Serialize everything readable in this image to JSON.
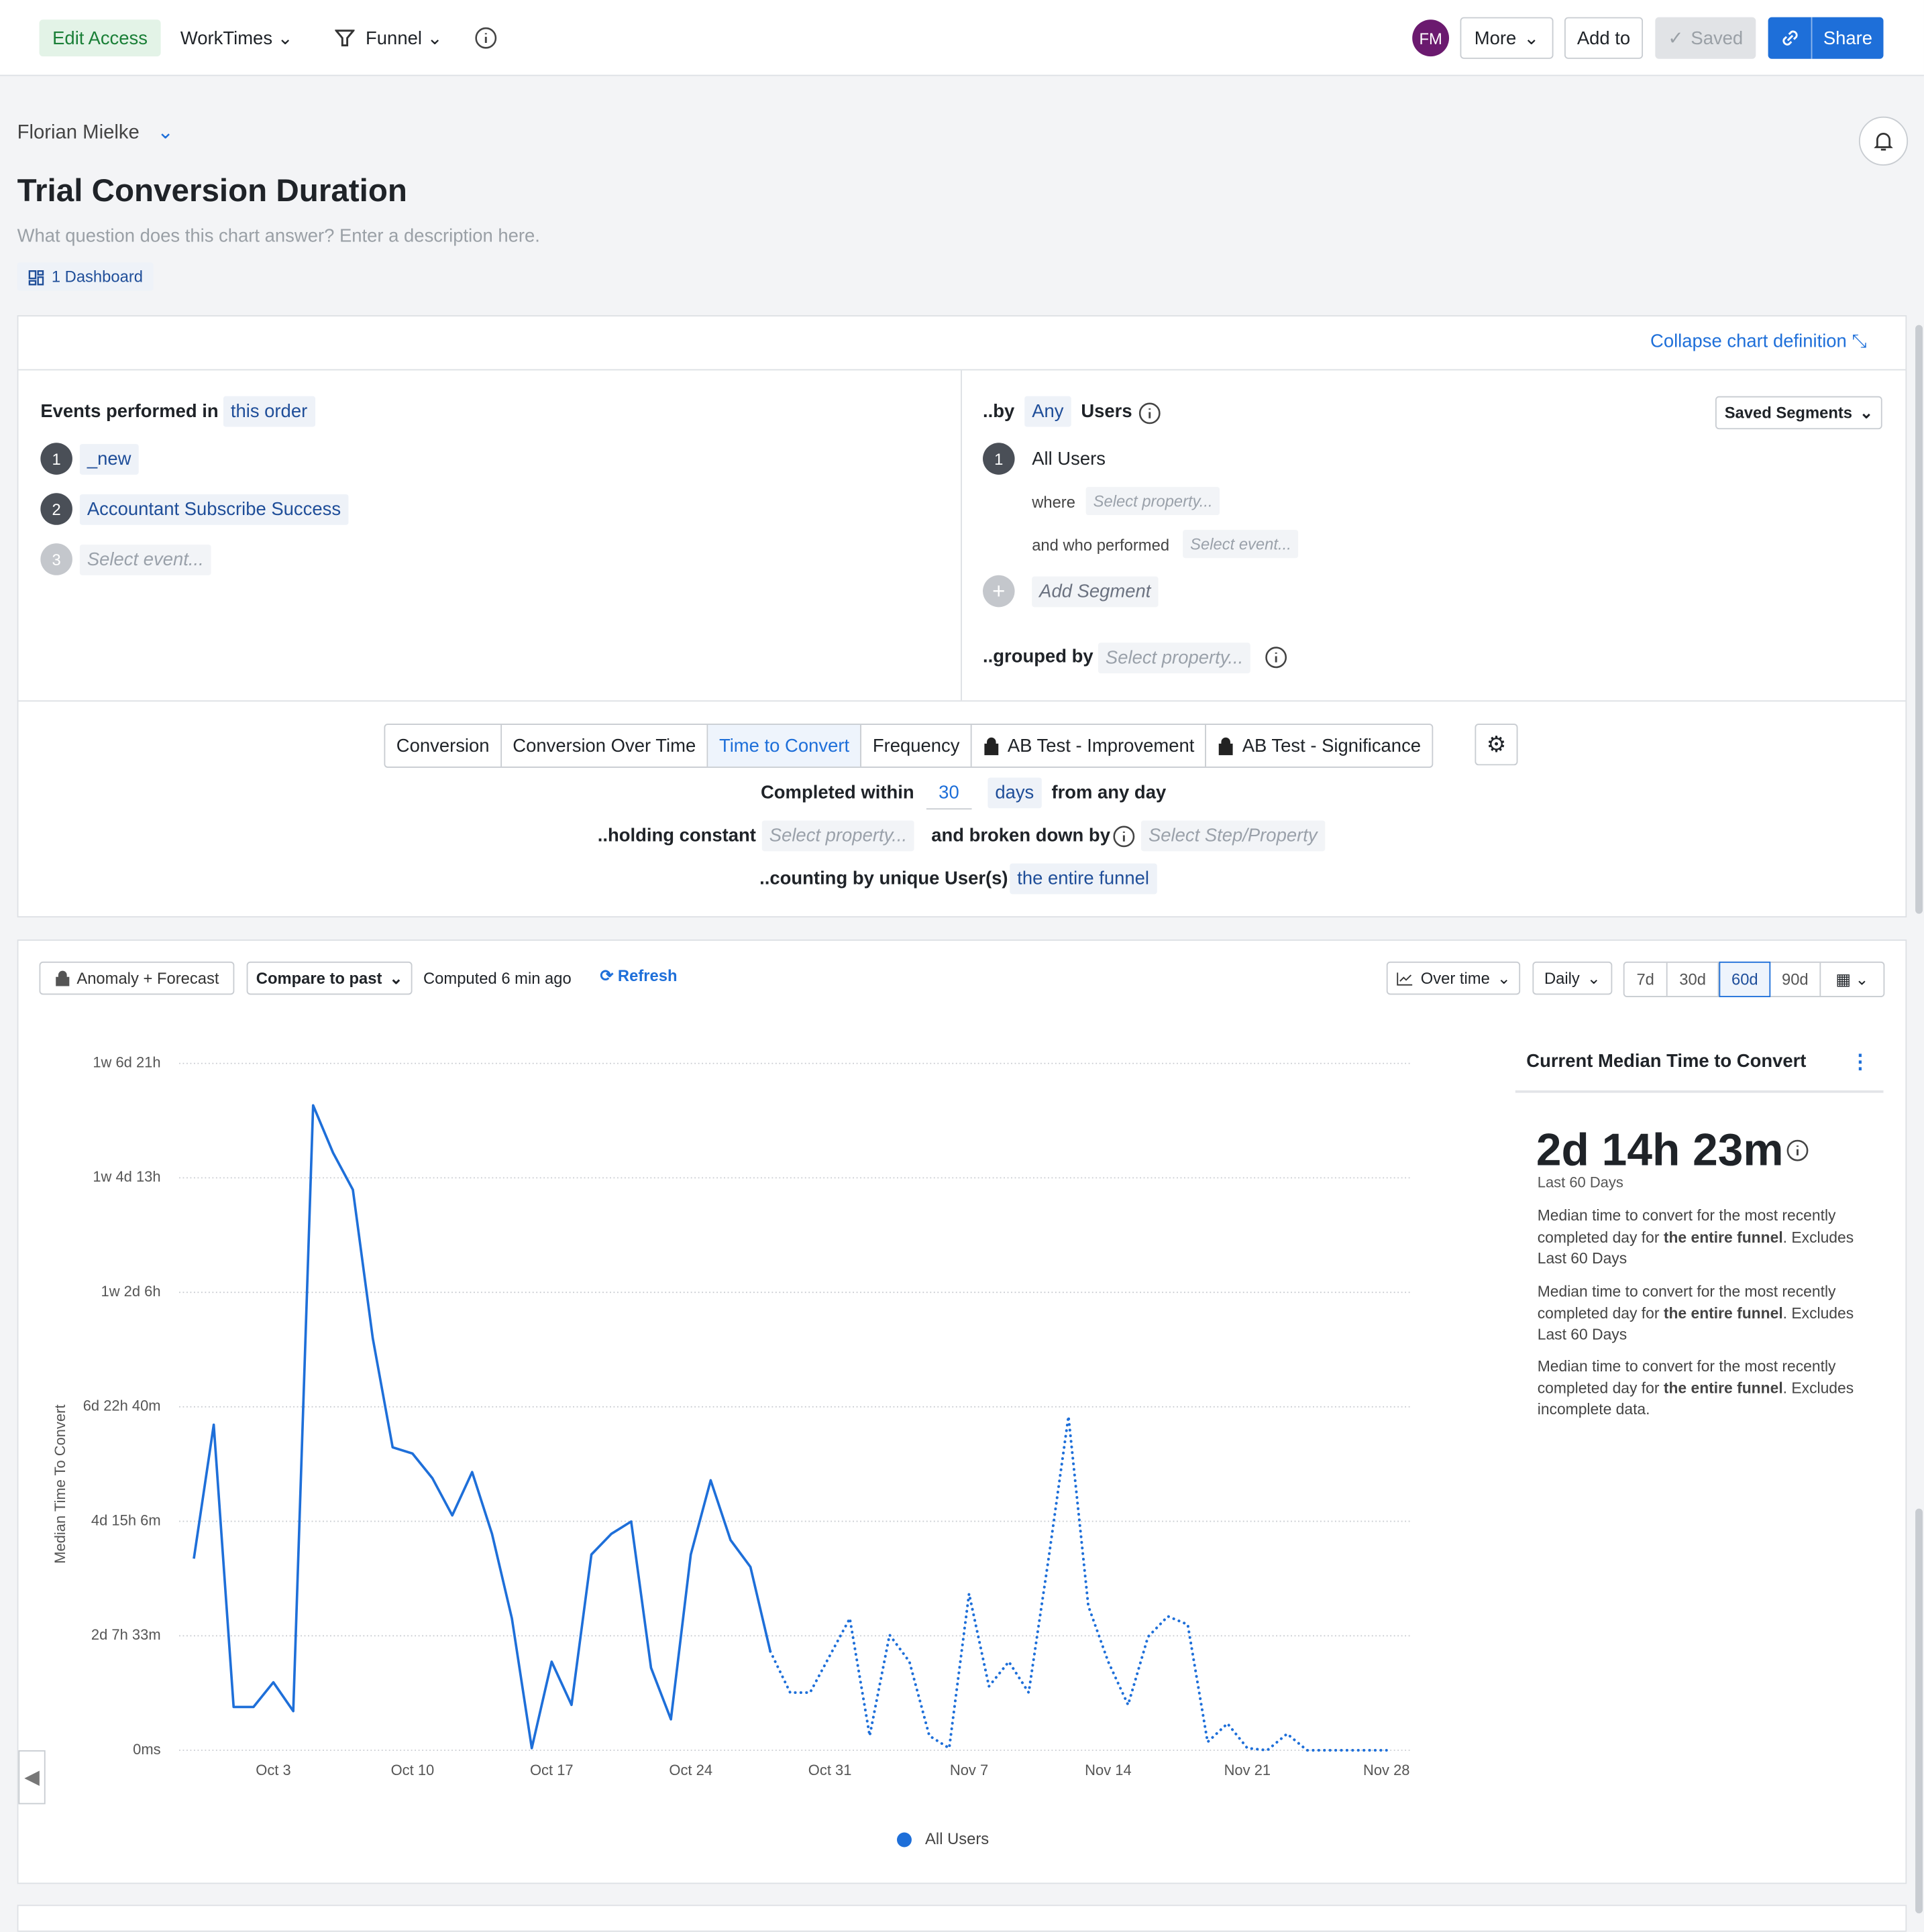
{
  "header": {
    "edit_access": "Edit Access",
    "workspace": "WorkTimes",
    "chart_kind": "Funnel",
    "avatar": "FM",
    "more": "More",
    "add_to": "Add to",
    "saved": "Saved",
    "share": "Share"
  },
  "owner": "Florian Mielke",
  "title": "Trial Conversion Duration",
  "description": "What question does this chart answer? Enter a description here.",
  "dashboard": "1 Dashboard",
  "definition": {
    "collapse": "Collapse chart definition",
    "events_label": "Events performed in",
    "order": "this order",
    "steps": [
      {
        "number": "1",
        "label": "_new"
      },
      {
        "number": "2",
        "label": "Accountant Subscribe Success"
      },
      {
        "number": "3",
        "label": "Select event..."
      }
    ],
    "by": "..by",
    "any": "Any",
    "users": "Users",
    "saved_segments": "Saved Segments",
    "segment": {
      "number": "1",
      "name": "All Users",
      "where": "where",
      "where_placeholder": "Select property...",
      "who_performed": "and who performed",
      "event_placeholder": "Select event..."
    },
    "add_segment": "Add Segment",
    "grouped_by": "..grouped by",
    "grouped_placeholder": "Select property...",
    "tabs": [
      "Conversion",
      "Conversion Over Time",
      "Time to Convert",
      "Frequency",
      "AB Test - Improvement",
      "AB Test - Significance"
    ],
    "completed_within": "Completed within",
    "window": "30",
    "window_unit": "days",
    "from": "from any day",
    "holding": "..holding constant",
    "holding_placeholder": "Select property...",
    "broken": "and broken down by",
    "broken_placeholder": "Select Step/Property",
    "counting": "..counting by unique User(s)",
    "counting_value": "the entire funnel"
  },
  "toolbar": {
    "anomaly": "Anomaly + Forecast",
    "compare": "Compare to past",
    "computed": "Computed 6 min ago",
    "refresh": "Refresh",
    "view": "Over time",
    "interval": "Daily",
    "ranges": [
      "7d",
      "30d",
      "60d",
      "90d"
    ]
  },
  "summary": {
    "title": "Current Median Time to Convert",
    "value": "2d 14h 23m",
    "period": "Last 60 Days",
    "notes": [
      {
        "before": "Median time to convert for the most recently completed day for ",
        "bold": "the entire funnel",
        "after": ". Excludes Last 60 Days"
      },
      {
        "before": "Median time to convert for the most recently completed day for ",
        "bold": "the entire funnel",
        "after": ". Excludes Last 60 Days"
      },
      {
        "before": "Median time to convert for the most recently completed day for ",
        "bold": "the entire funnel",
        "after": ". Excludes incomplete data."
      }
    ]
  },
  "chart_data": {
    "type": "line",
    "y_label": "Median Time To Convert",
    "categories": [
      null,
      null,
      null,
      null,
      "Oct 3",
      null,
      null,
      null,
      null,
      null,
      null,
      "Oct 10",
      null,
      null,
      null,
      null,
      null,
      null,
      "Oct 17",
      null,
      null,
      null,
      null,
      null,
      null,
      "Oct 24",
      null,
      null,
      null,
      null,
      null,
      null,
      "Oct 31",
      null,
      null,
      null,
      null,
      null,
      null,
      "Nov 7",
      null,
      null,
      null,
      null,
      null,
      null,
      "Nov 14",
      null,
      null,
      null,
      null,
      null,
      null,
      "Nov 21",
      null,
      null,
      null,
      null,
      null,
      null,
      "Nov 28"
    ],
    "series": [
      {
        "name": "All Users",
        "color": "#1e6fd9",
        "values": [
          93,
          158,
          21,
          21,
          33,
          19,
          313,
          290,
          272,
          200,
          147,
          144,
          132,
          114,
          135,
          105,
          64,
          1,
          43,
          22,
          95,
          105,
          111,
          40,
          15,
          95,
          131,
          102,
          89,
          48,
          28,
          28,
          46,
          64,
          7,
          56,
          43,
          7,
          1,
          76,
          31,
          43,
          28,
          93,
          162,
          70,
          43,
          22,
          55,
          65,
          61,
          4,
          13,
          1,
          0,
          8,
          0,
          0,
          0,
          0,
          0
        ]
      }
    ],
    "incomplete_from": 29,
    "ylim": [
      0,
      333.33
    ],
    "yticks": [
      {
        "value": 0,
        "label": "0ms"
      },
      {
        "value": 55.55,
        "label": "2d 7h 33m"
      },
      {
        "value": 111.1,
        "label": "4d 15h 6m"
      },
      {
        "value": 166.67,
        "label": "6d 22h 40m"
      },
      {
        "value": 222.2,
        "label": "1w 2d 6h"
      },
      {
        "value": 277.8,
        "label": "1w 4d 13h"
      },
      {
        "value": 333.33,
        "label": "1w 6d 21h"
      }
    ],
    "grid": true,
    "legend": "bottom"
  }
}
